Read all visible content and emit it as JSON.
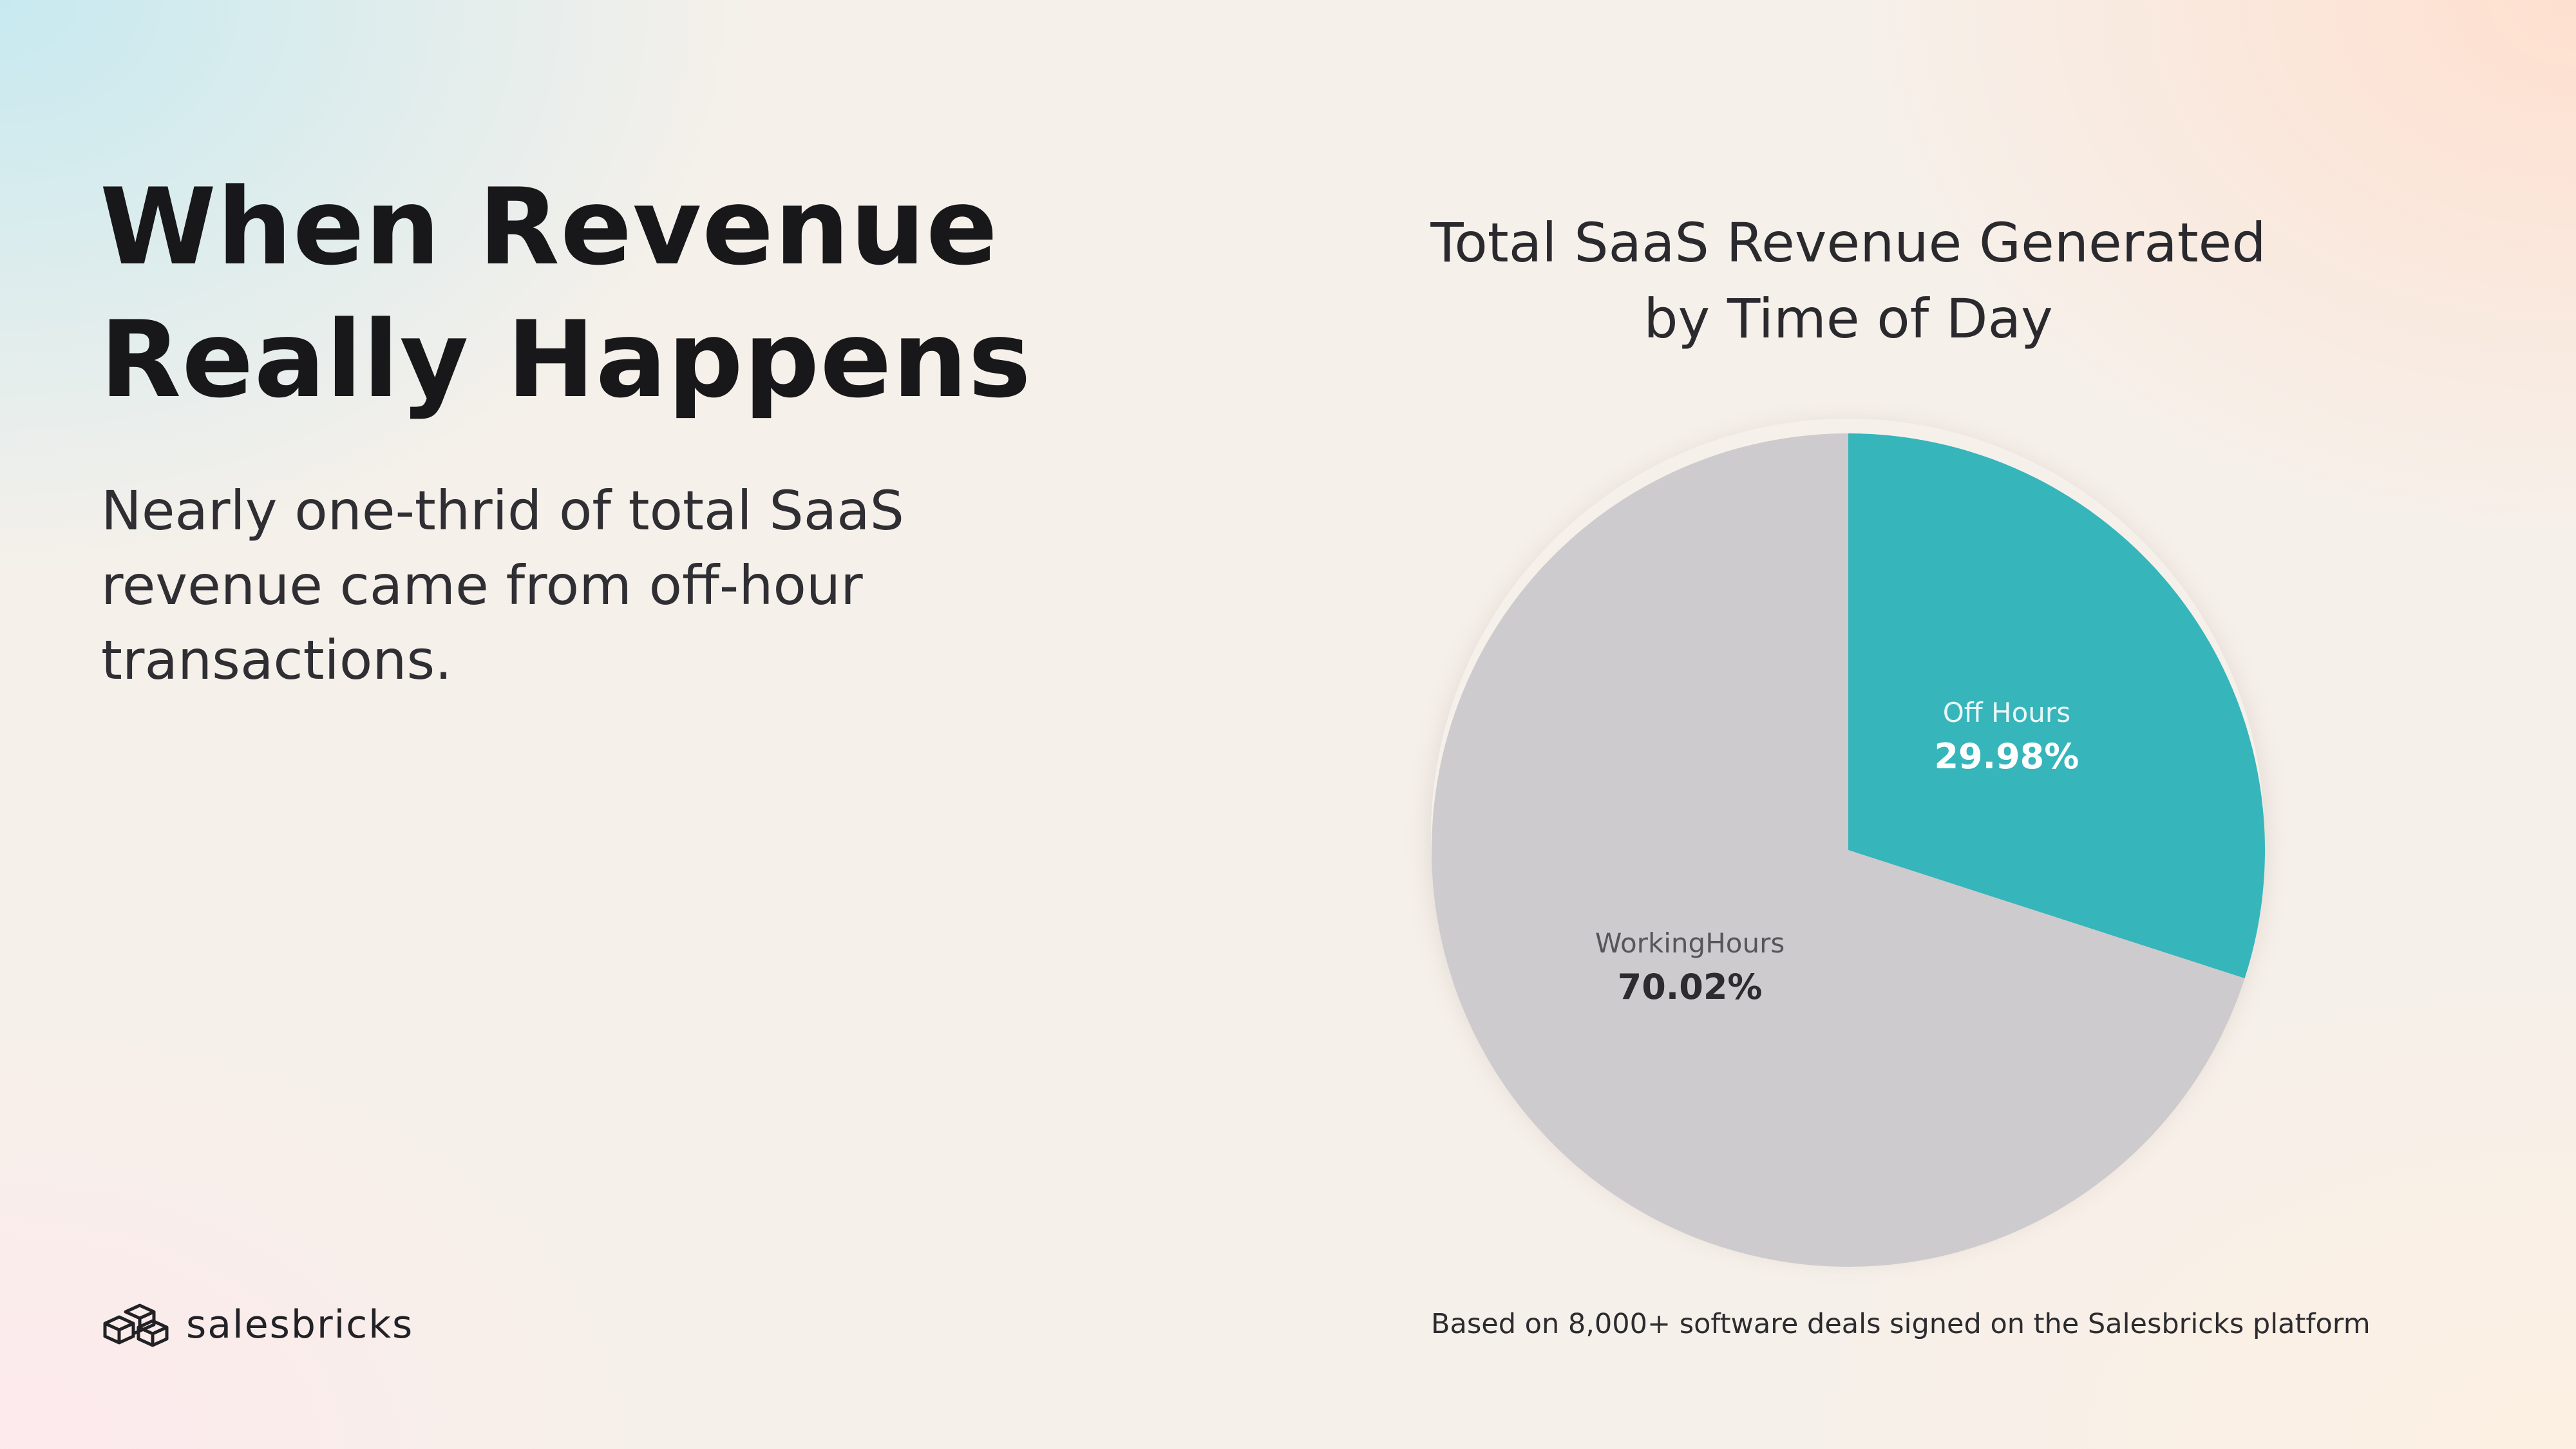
{
  "headline": {
    "line1": "When Revenue",
    "line2": "Really Happens"
  },
  "subtext": "Nearly one-thrid of total SaaS revenue came from off-hour transactions.",
  "brand": {
    "name": "salesbricks",
    "icon": "bricks-logo-icon"
  },
  "footnote": "Based on 8,000+ software deals signed on the Salesbricks platform",
  "colors": {
    "off_hours": "#36b5bb",
    "working_hours": "#cdcbcd",
    "headline": "#18181b"
  },
  "chart_data": {
    "type": "pie",
    "title": "Total SaaS Revenue Generated by Time of Day",
    "title_lines": [
      "Total SaaS Revenue Generated",
      "by Time of Day"
    ],
    "slices": [
      {
        "label": "Off Hours",
        "value": 29.98,
        "display": "29.98%",
        "color": "#36b5bb"
      },
      {
        "label": "WorkingHours",
        "value": 70.02,
        "display": "70.02%",
        "color": "#cdcbcd"
      }
    ],
    "start_angle_deg": 0,
    "direction": "clockwise",
    "legend": "none"
  }
}
